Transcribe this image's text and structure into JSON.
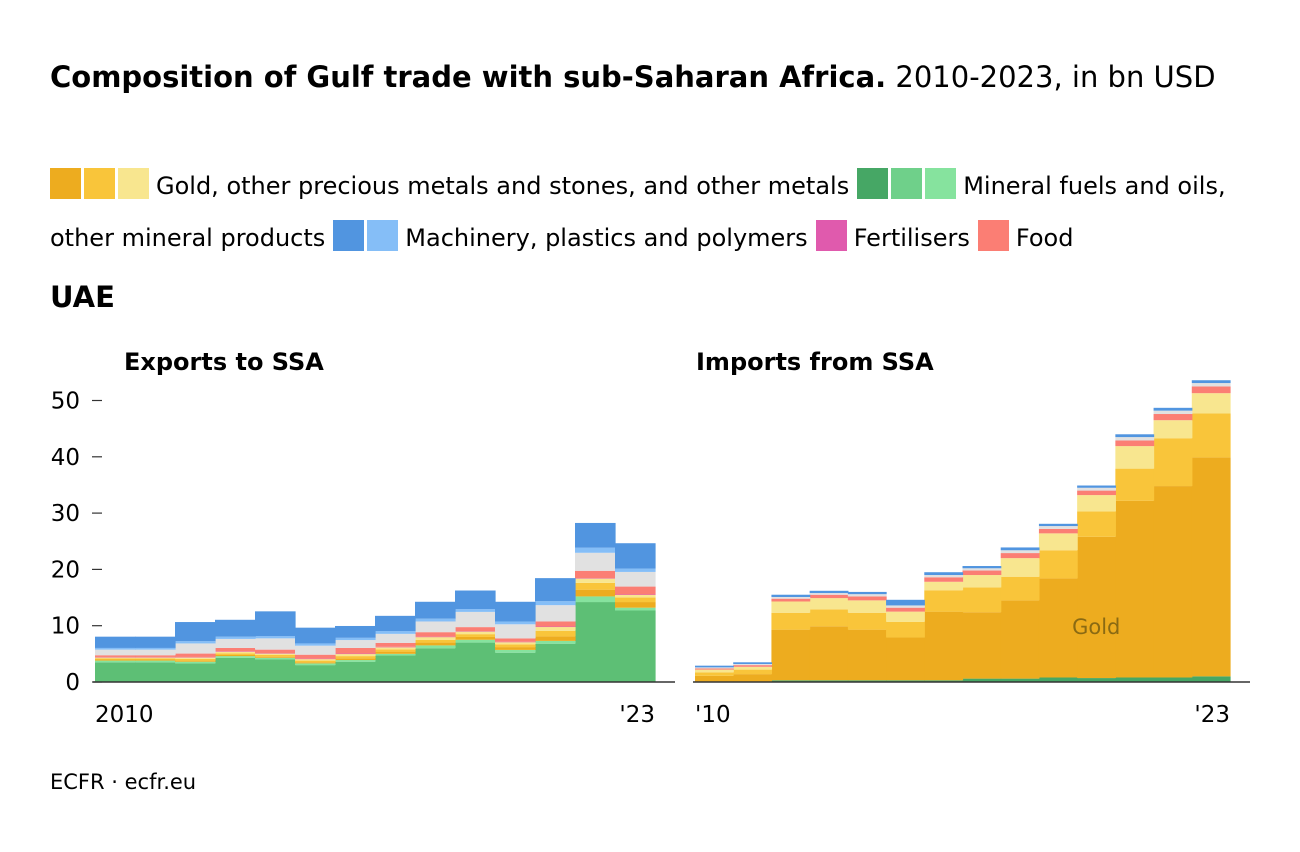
{
  "title": {
    "bold": "Composition of Gulf trade with sub-Saharan Africa.",
    "rest": "2010-2023, in bn USD"
  },
  "legend": [
    {
      "label": "Gold, other precious metals and stones, and other metals",
      "colors": [
        "#edac1f",
        "#f9c53a",
        "#f8e68f"
      ]
    },
    {
      "label": "Mineral fuels and oils, other mineral products",
      "colors": [
        "#46a765",
        "#6fd08a",
        "#86e39e"
      ]
    },
    {
      "label": "Machinery, plastics and polymers",
      "colors": [
        "#5195e0",
        "#85bef7"
      ]
    },
    {
      "label": "Fertilisers",
      "colors": [
        "#e05aad"
      ]
    },
    {
      "label": "Food",
      "colors": [
        "#fb7e74"
      ]
    }
  ],
  "section_title": "UAE",
  "footer": "ECFR · ecfr.eu",
  "chart_data": [
    {
      "type": "stacked-step-area",
      "title": "Exports to SSA",
      "years": [
        2010,
        2011,
        2012,
        2013,
        2014,
        2015,
        2016,
        2017,
        2018,
        2019,
        2020,
        2021,
        2022,
        2023
      ],
      "x_tick_labels": [
        "2010",
        "'23"
      ],
      "ylim": [
        0,
        55
      ],
      "yticks": [
        0,
        10,
        20,
        30,
        40,
        50
      ],
      "series": [
        {
          "name": "Mineral fuels",
          "color": "#5dbf75",
          "values": [
            3.5,
            3.5,
            3.3,
            4.3,
            4.0,
            3.0,
            3.6,
            4.7,
            6.0,
            7.0,
            5.2,
            6.8,
            14.2,
            12.7
          ]
        },
        {
          "name": "Other mineral products",
          "color": "#86e39e",
          "values": [
            0.3,
            0.3,
            0.3,
            0.3,
            0.3,
            0.3,
            0.3,
            0.3,
            0.5,
            0.5,
            0.5,
            0.5,
            1.0,
            0.5
          ]
        },
        {
          "name": "Gold",
          "color": "#edac1f",
          "values": [
            0.2,
            0.2,
            0.2,
            0.2,
            0.2,
            0.2,
            0.3,
            0.4,
            0.5,
            0.5,
            0.5,
            0.8,
            1.2,
            1.0
          ]
        },
        {
          "name": "Other precious metals and stones",
          "color": "#f9c53a",
          "values": [
            0.2,
            0.2,
            0.3,
            0.3,
            0.3,
            0.3,
            0.4,
            0.4,
            0.5,
            0.5,
            0.5,
            1.0,
            1.2,
            0.8
          ]
        },
        {
          "name": "Other metals",
          "color": "#f8e68f",
          "values": [
            0.2,
            0.2,
            0.3,
            0.3,
            0.3,
            0.3,
            0.4,
            0.4,
            0.5,
            0.5,
            0.4,
            0.7,
            0.8,
            0.5
          ]
        },
        {
          "name": "Fertilisers",
          "color": "#e05aad",
          "values": [
            0.05,
            0.05,
            0.05,
            0.05,
            0.05,
            0.05,
            0.05,
            0.05,
            0.05,
            0.05,
            0.05,
            0.05,
            0.05,
            0.05
          ]
        },
        {
          "name": "Food",
          "color": "#fb7e74",
          "values": [
            0.3,
            0.3,
            0.6,
            0.6,
            0.6,
            0.7,
            1.0,
            0.7,
            0.8,
            0.7,
            0.6,
            0.9,
            1.3,
            1.4
          ]
        },
        {
          "name": "Other",
          "color": "#e1e1e1",
          "values": [
            1.0,
            1.0,
            1.8,
            1.6,
            2.0,
            1.6,
            1.4,
            1.6,
            1.9,
            2.7,
            2.5,
            2.9,
            3.2,
            2.6
          ]
        },
        {
          "name": "Plastics and polymers",
          "color": "#85bef7",
          "values": [
            0.3,
            0.3,
            0.4,
            0.4,
            0.4,
            0.4,
            0.4,
            0.5,
            0.5,
            0.5,
            0.5,
            0.7,
            0.9,
            0.6
          ]
        },
        {
          "name": "Machinery",
          "color": "#5195e0",
          "values": [
            2.0,
            2.0,
            3.4,
            3.0,
            4.4,
            2.8,
            2.1,
            2.7,
            3.0,
            3.3,
            3.5,
            4.1,
            4.4,
            4.5
          ]
        }
      ]
    },
    {
      "type": "stacked-step-area",
      "title": "Imports from SSA",
      "years": [
        2010,
        2011,
        2012,
        2013,
        2014,
        2015,
        2016,
        2017,
        2018,
        2019,
        2020,
        2021,
        2022,
        2023
      ],
      "x_tick_labels": [
        "'10",
        "'23"
      ],
      "ylim": [
        0,
        55
      ],
      "yticks": [
        0,
        10,
        20,
        30,
        40,
        50
      ],
      "annotation": "Gold",
      "series": [
        {
          "name": "Mineral fuels",
          "color": "#46a765",
          "values": [
            0.1,
            0.1,
            0.3,
            0.3,
            0.3,
            0.3,
            0.3,
            0.6,
            0.6,
            0.8,
            0.7,
            0.8,
            0.8,
            1.0
          ]
        },
        {
          "name": "Gold",
          "color": "#edac1f",
          "values": [
            1.0,
            1.3,
            9.0,
            9.6,
            9.0,
            7.6,
            12.2,
            11.8,
            13.9,
            17.6,
            25.1,
            31.4,
            34.0,
            38.9
          ]
        },
        {
          "name": "Other precious metals and stones",
          "color": "#f9c53a",
          "values": [
            0.6,
            0.8,
            3.0,
            3.0,
            3.0,
            2.8,
            3.8,
            4.4,
            4.2,
            5.0,
            4.5,
            5.7,
            8.5,
            7.8
          ]
        },
        {
          "name": "Other metals",
          "color": "#f8e68f",
          "values": [
            0.5,
            0.5,
            2.0,
            2.0,
            2.2,
            1.8,
            1.5,
            2.2,
            3.3,
            3.0,
            2.9,
            4.0,
            3.2,
            3.6
          ]
        },
        {
          "name": "Food",
          "color": "#fb7e74",
          "values": [
            0.2,
            0.3,
            0.5,
            0.6,
            0.7,
            0.7,
            0.8,
            0.8,
            0.9,
            0.8,
            0.8,
            1.0,
            1.1,
            1.2
          ]
        },
        {
          "name": "Other",
          "color": "#e1e1e1",
          "values": [
            0.2,
            0.2,
            0.3,
            0.3,
            0.4,
            0.4,
            0.4,
            0.4,
            0.5,
            0.5,
            0.5,
            0.6,
            0.6,
            0.6
          ]
        },
        {
          "name": "Machinery, plastics and polymers",
          "color": "#5195e0",
          "values": [
            0.3,
            0.3,
            0.4,
            0.4,
            0.4,
            1.0,
            0.5,
            0.4,
            0.5,
            0.4,
            0.4,
            0.5,
            0.5,
            0.5
          ]
        }
      ]
    }
  ]
}
